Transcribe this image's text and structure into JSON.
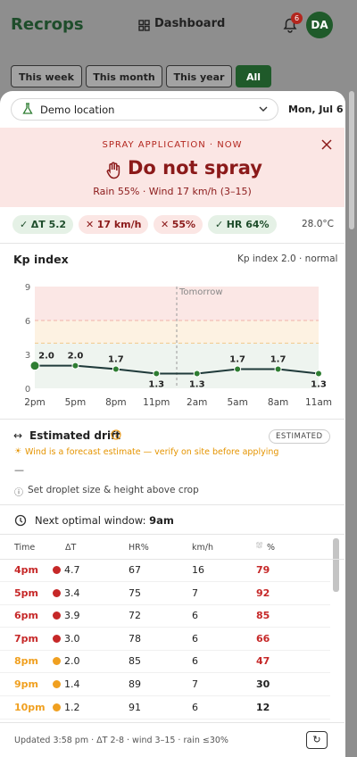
{
  "header": {
    "brand": "Recrops",
    "title": "Dashboard",
    "notifications": "6",
    "avatar": "DA"
  },
  "tabs": [
    {
      "label": "This week",
      "active": false
    },
    {
      "label": "This month",
      "active": false
    },
    {
      "label": "This year",
      "active": false
    },
    {
      "label": "All",
      "active": true
    }
  ],
  "location": {
    "name": "Demo location",
    "date": "Mon, Jul 6"
  },
  "alert": {
    "kicker": "SPRAY APPLICATION · NOW",
    "title": "Do not spray",
    "detail": "Rain 55% · Wind 17 km/h (3–15)"
  },
  "chips": [
    {
      "text": "ΔT 5.2",
      "ok": true
    },
    {
      "text": "17 km/h",
      "ok": false
    },
    {
      "text": "55%",
      "ok": false
    },
    {
      "text": "HR 64%",
      "ok": true
    }
  ],
  "temperature": "28.0°C",
  "chart_data": {
    "type": "line",
    "title": "Kp index",
    "subtitle": "Kp index 2.0 · normal",
    "annotation": "Tomorrow",
    "categories": [
      "2pm",
      "5pm",
      "8pm",
      "11pm",
      "2am",
      "5am",
      "8am",
      "11am"
    ],
    "values": [
      2.0,
      2.0,
      1.7,
      1.3,
      1.3,
      1.7,
      1.7,
      1.3
    ],
    "value_labels": [
      "2.0",
      "2.0",
      "1.7",
      "1.3",
      "1.3",
      "1.7",
      "1.7",
      "1.3"
    ],
    "color": "#1f3a3a",
    "point_color": "#2e7d32",
    "ylim": [
      0,
      9
    ],
    "yticks": [
      0,
      3,
      6,
      9
    ],
    "bands": [
      {
        "from": 0,
        "to": 4,
        "color": "#eef4ef"
      },
      {
        "from": 4,
        "to": 6,
        "color": "#fdf2e2"
      },
      {
        "from": 6,
        "to": 9,
        "color": "#fbe7e5"
      }
    ]
  },
  "drift": {
    "title": "Estimated drift",
    "badge": "ESTIMATED",
    "warning": "Wind is a forecast estimate — verify on site before applying",
    "value": "—",
    "hint": "Set droplet size & height above crop"
  },
  "next_window": {
    "label": "Next optimal window:",
    "value": "9am"
  },
  "table": {
    "columns": [
      "Time",
      "ΔT",
      "HR%",
      "km/h",
      "%"
    ],
    "rows": [
      {
        "cells": [
          "4pm",
          "4.7",
          "67",
          "16",
          "79"
        ],
        "color": "#c62828",
        "rain_color": "#c62828"
      },
      {
        "cells": [
          "5pm",
          "3.4",
          "75",
          "7",
          "92"
        ],
        "color": "#c62828",
        "rain_color": "#c62828"
      },
      {
        "cells": [
          "6pm",
          "3.9",
          "72",
          "6",
          "85"
        ],
        "color": "#c62828",
        "rain_color": "#c62828"
      },
      {
        "cells": [
          "7pm",
          "3.0",
          "78",
          "6",
          "66"
        ],
        "color": "#c62828",
        "rain_color": "#c62828"
      },
      {
        "cells": [
          "8pm",
          "2.0",
          "85",
          "6",
          "47"
        ],
        "color": "#f0a020",
        "rain_color": "#c62828"
      },
      {
        "cells": [
          "9pm",
          "1.4",
          "89",
          "7",
          "30"
        ],
        "color": "#f0a020",
        "rain_color": "#222222"
      },
      {
        "cells": [
          "10pm",
          "1.2",
          "91",
          "6",
          "12"
        ],
        "color": "#f0a020",
        "rain_color": "#222222"
      }
    ]
  },
  "footer": "Updated 3:58 pm · ΔT 2-8 · wind 3–15 · rain ≤30%"
}
